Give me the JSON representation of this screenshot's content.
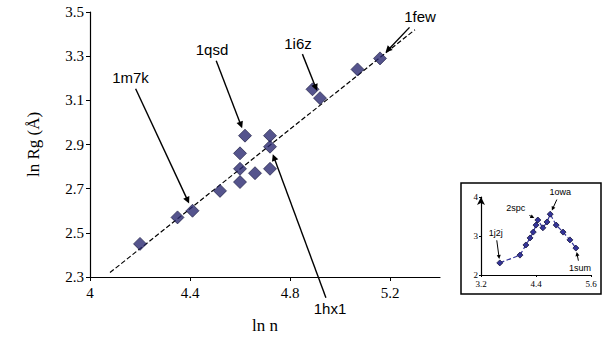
{
  "chart_data": [
    {
      "type": "scatter",
      "x_label": "ln n",
      "y_label": "ln Rg (Å)",
      "x": [
        4.2,
        4.35,
        4.41,
        4.52,
        4.6,
        4.6,
        4.6,
        4.62,
        4.66,
        4.72,
        4.72,
        4.72,
        4.89,
        4.92,
        5.07,
        5.16
      ],
      "y": [
        2.45,
        2.57,
        2.6,
        2.69,
        2.73,
        2.79,
        2.86,
        2.94,
        2.77,
        2.79,
        2.89,
        2.94,
        3.15,
        3.11,
        3.24,
        3.29
      ],
      "color": "#2b2970",
      "marker": "diamond",
      "xlim": [
        4,
        5.4
      ],
      "xticks": [
        4,
        4.4,
        4.8,
        5.2
      ],
      "ylim": [
        2.3,
        3.5
      ],
      "yticks": [
        2.3,
        2.5,
        2.7,
        2.9,
        3.1,
        3.3,
        3.5
      ],
      "grid": false,
      "fit": {
        "x": [
          4.08,
          5.3
        ],
        "y": [
          2.32,
          3.42
        ],
        "line_style": "dashed"
      },
      "annotations": [
        {
          "text": "1m7k",
          "x": 4.41,
          "y": 2.6
        },
        {
          "text": "1qsd",
          "x": 4.62,
          "y": 2.94
        },
        {
          "text": "1i6z",
          "x": 4.92,
          "y": 3.11
        },
        {
          "text": "1few",
          "x": 5.16,
          "y": 3.29
        },
        {
          "text": "1hx1",
          "x": 4.72,
          "y": 2.89
        }
      ]
    },
    {
      "type": "line",
      "x": [
        3.61,
        4.05,
        4.18,
        4.27,
        4.34,
        4.4,
        4.44,
        4.55,
        4.64,
        4.71,
        4.84,
        4.99,
        5.14,
        5.27
      ],
      "y": [
        2.31,
        2.51,
        2.77,
        2.95,
        3.1,
        3.28,
        3.41,
        3.21,
        3.36,
        3.56,
        3.28,
        3.1,
        2.9,
        2.69
      ],
      "color": "#34349a",
      "marker": "diamond",
      "line_style": "dashed",
      "xlim": [
        3.2,
        5.6
      ],
      "xticks": [
        3.2,
        4.4,
        5.6
      ],
      "ylim": [
        2,
        4
      ],
      "yticks": [
        2,
        3,
        4
      ],
      "grid": false,
      "annotations": [
        {
          "text": "1j2j",
          "x": 3.61,
          "y": 2.31
        },
        {
          "text": "2spc",
          "x": 4.44,
          "y": 3.41
        },
        {
          "text": "1owa",
          "x": 4.71,
          "y": 3.56
        },
        {
          "text": "1sum",
          "x": 5.27,
          "y": 2.69
        }
      ]
    }
  ]
}
